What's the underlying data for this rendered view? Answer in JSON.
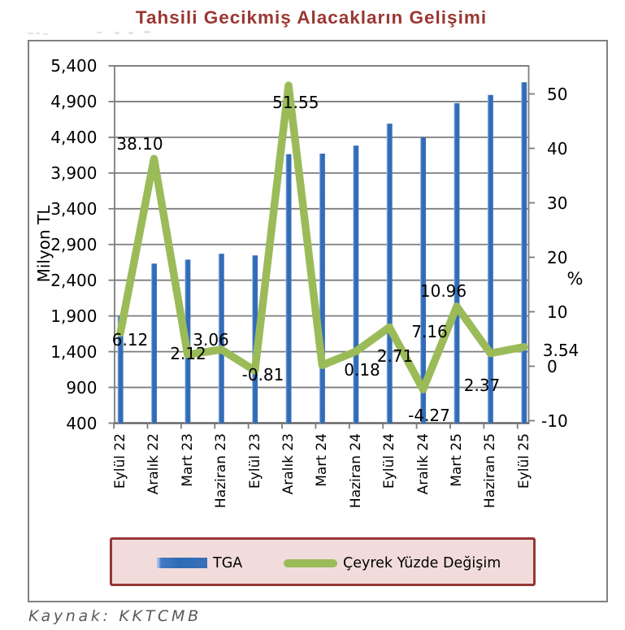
{
  "page": {
    "title": "Tahsili Gecikmiş Alacakların Gelişimi",
    "source_note": "Kaynak: KKTCMB"
  },
  "chart_data": {
    "type": "bar",
    "title": "Tahsili Gecikmiş Alacakların Gelişimi",
    "categories": [
      "Eylül 22",
      "Aralık 22",
      "Mart 23",
      "Haziran 23",
      "Eylül 23",
      "Aralık 23",
      "Mart 24",
      "Haziran 24",
      "Eylül 24",
      "Aralık 24",
      "Mart 25",
      "Haziran 25",
      "Eylül 25"
    ],
    "series": [
      {
        "name": "TGA",
        "type": "bar",
        "axis": "left",
        "values": [
          1906,
          2632,
          2688,
          2770,
          2747,
          4164,
          4171,
          4284,
          4591,
          4395,
          4877,
          4993,
          5170
        ]
      },
      {
        "name": "Çeyrek Yüzde Değişim",
        "type": "line",
        "axis": "right",
        "values": [
          6.12,
          38.1,
          2.12,
          3.06,
          -0.81,
          51.55,
          0.18,
          2.71,
          7.16,
          -4.27,
          10.96,
          2.37,
          3.54
        ],
        "labels": [
          "6.12",
          "38.10",
          "2.12",
          "3.06",
          "-0.81",
          "51.55",
          "0.18",
          "2.71",
          "7.16",
          "-4.27",
          "10.96",
          "2.37",
          "3.54"
        ]
      }
    ],
    "left_axis": {
      "title": "Milyon TL",
      "min": 400,
      "max": 5400,
      "step": 500,
      "tick_labels": [
        "400",
        "900",
        "1,400",
        "1,900",
        "2,400",
        "2,900",
        "3,400",
        "3,900",
        "4,400",
        "4,900",
        "5,400"
      ]
    },
    "right_axis": {
      "title": "%",
      "min": -10,
      "max": 50,
      "step": 10,
      "tick_labels": [
        "-10",
        "0",
        "10",
        "20",
        "30",
        "40",
        "50"
      ]
    },
    "legend": {
      "position": "bottom",
      "entries": [
        "TGA",
        "Çeyrek Yüzde Değişim"
      ]
    },
    "grid": "horizontal",
    "colors": {
      "title": "#9a3732",
      "bar_main": "#2d6ab6",
      "bar_light": "#a6c1e4",
      "bar_mid": "#4479c4",
      "bar_right": "#3a70b8",
      "line": "#9bbb59",
      "grid_line": "#7d7d7d",
      "axis_line": "#666666",
      "legend_fill": "#f2dcdb",
      "legend_border": "#953735",
      "source_text": "#5a5a5a"
    }
  }
}
